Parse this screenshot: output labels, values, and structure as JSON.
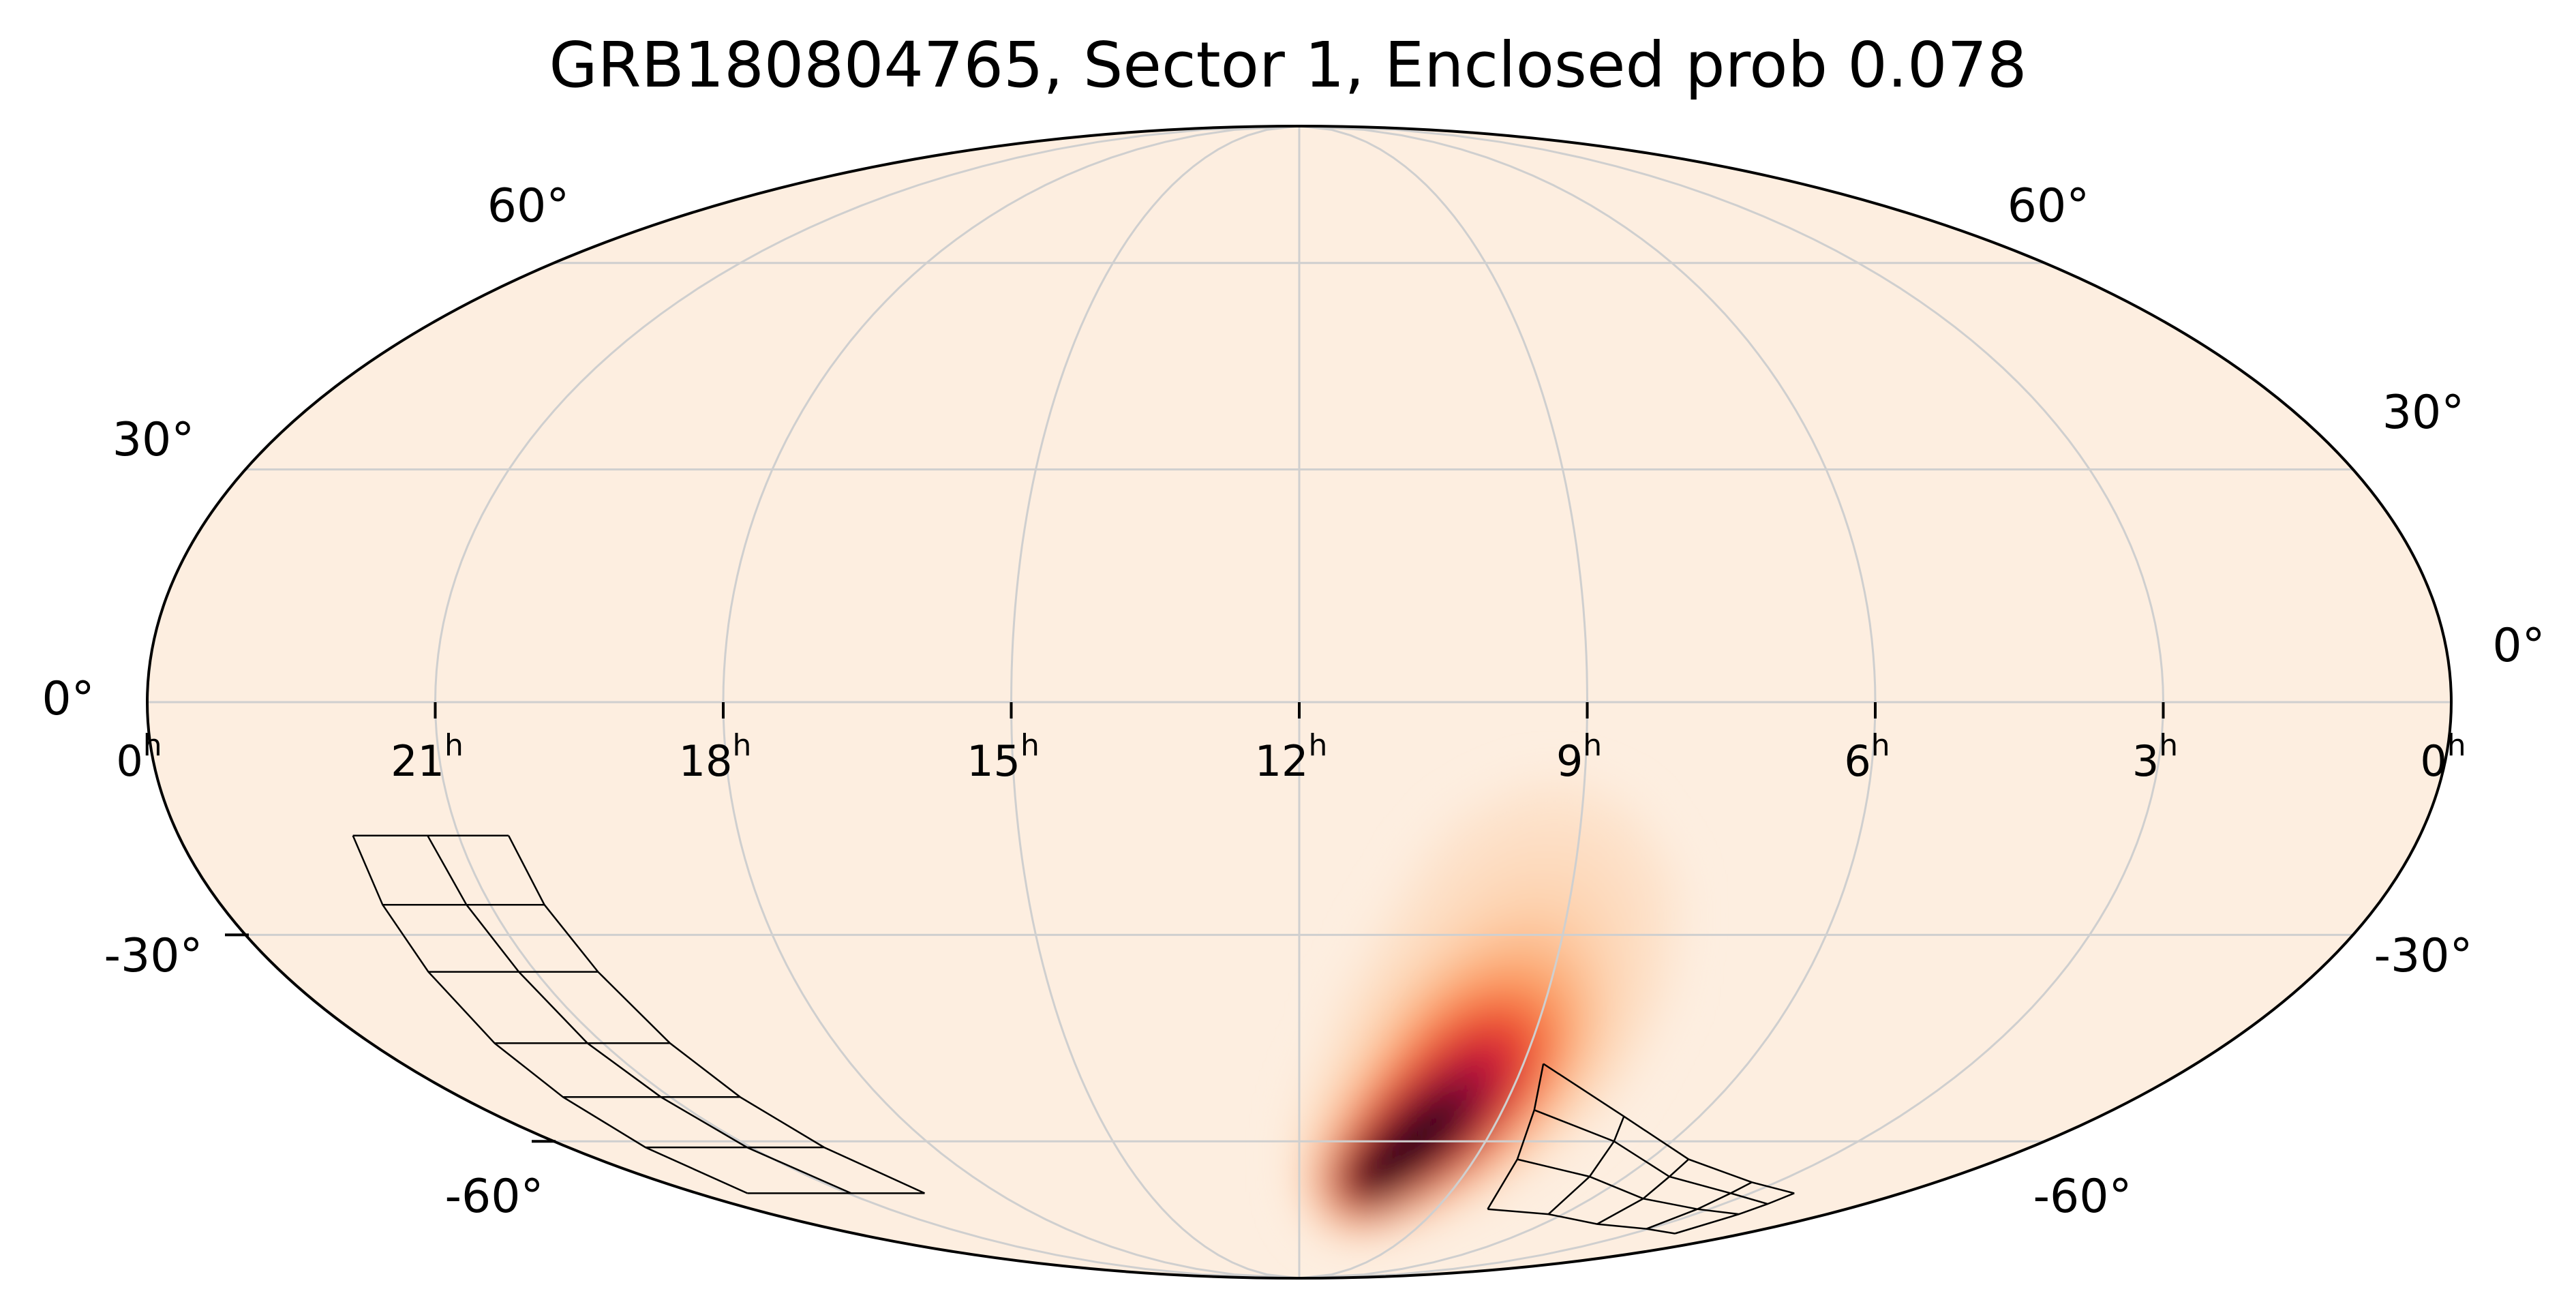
{
  "chart_data": {
    "type": "heatmap",
    "projection": "mollweide",
    "title": "GRB180804765, Sector 1, Enclosed prob 0.078",
    "colormap": [
      "#fdeee0",
      "#fdd3b0",
      "#fc9c5f",
      "#f14d2d",
      "#c70f3c",
      "#7a0a36",
      "#1a0412"
    ],
    "background_color": "#fdeee0",
    "grid": true,
    "ra_ticks": [
      "0",
      "21",
      "18",
      "15",
      "12",
      "9",
      "6",
      "3",
      "0"
    ],
    "ra_tick_hours": [
      0,
      21,
      18,
      15,
      12,
      9,
      6,
      3,
      0
    ],
    "ra_superscript": "h",
    "dec_ticks_left": [
      "60°",
      "30°",
      "0°",
      "-30°",
      "-60°"
    ],
    "dec_ticks_right": [
      "60°",
      "30°",
      "0°",
      "-30°",
      "-60°"
    ],
    "dec_tick_values": [
      60,
      30,
      0,
      -30,
      -60
    ],
    "probability_blobs": [
      {
        "ra_deg": 141,
        "dec_deg": -34,
        "sigma_ra_deg": 14,
        "sigma_dec_deg": 14,
        "weight": 0.14
      },
      {
        "ra_deg": 146,
        "dec_deg": -50,
        "sigma_ra_deg": 12,
        "sigma_dec_deg": 9,
        "weight": 0.55
      },
      {
        "ra_deg": 154,
        "dec_deg": -60,
        "sigma_ra_deg": 10,
        "sigma_dec_deg": 6,
        "weight": 0.85
      },
      {
        "ra_deg": 162,
        "dec_deg": -66,
        "sigma_ra_deg": 7,
        "sigma_dec_deg": 4,
        "weight": 1.0
      }
    ],
    "ccd_grids": [
      {
        "name": "camera-left",
        "rows": [
          [
            [
              307,
              -17
            ],
            [
              320,
              -17
            ],
            [
              332,
              -17
            ]
          ],
          [
            [
              306,
              -26
            ],
            [
              319,
              -26
            ],
            [
              333,
              -26
            ]
          ],
          [
            [
              304,
              -35
            ],
            [
              318,
              -35
            ],
            [
              334,
              -35
            ]
          ],
          [
            [
              302,
              -45
            ],
            [
              318,
              -45
            ],
            [
              336,
              -45
            ]
          ],
          [
            [
              300,
              -53
            ],
            [
              317,
              -53
            ],
            [
              338,
              -53
            ]
          ],
          [
            [
              297,
              -61
            ],
            [
              316,
              -61
            ],
            [
              341,
              -61
            ]
          ],
          [
            [
              292,
              -69
            ],
            [
              314,
              -69
            ],
            [
              345,
              -69
            ]
          ]
        ]
      },
      {
        "name": "camera-right",
        "rows": [
          [
            [
              131,
              -48
            ],
            [
              107,
              -56
            ],
            [
              80,
              -63
            ],
            [
              52,
              -67
            ],
            [
              32,
              -69
            ]
          ],
          [
            [
              128,
              -55
            ],
            [
              104,
              -60
            ],
            [
              78,
              -66
            ],
            [
              51,
              -69
            ],
            [
              31,
              -71
            ]
          ],
          [
            [
              124,
              -63
            ],
            [
              100,
              -66
            ],
            [
              74,
              -70
            ],
            [
              49,
              -72
            ],
            [
              30,
              -73
            ]
          ],
          [
            [
              118,
              -72
            ],
            [
              95,
              -73
            ],
            [
              70,
              -75
            ],
            [
              46,
              -76
            ],
            [
              28,
              -77
            ]
          ]
        ]
      }
    ]
  }
}
